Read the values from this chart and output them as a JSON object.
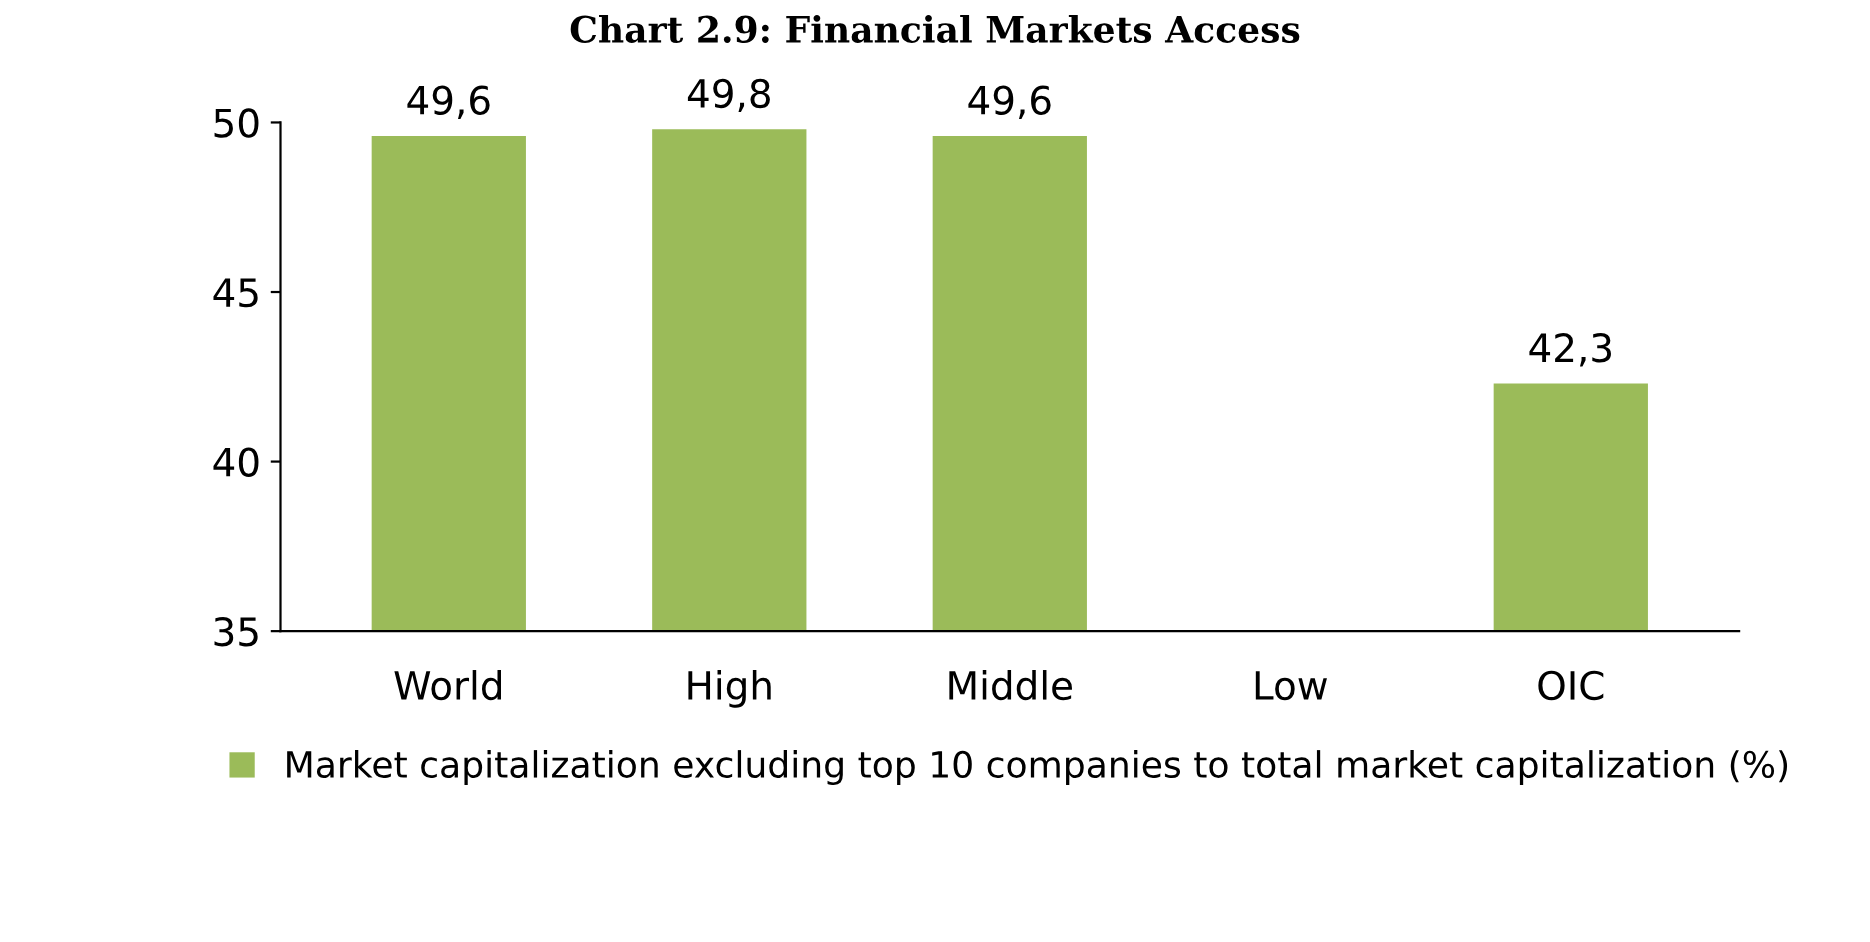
{
  "chart_data": {
    "type": "bar",
    "title": "Chart 2.9: Financial Markets Access",
    "categories": [
      "World",
      "High",
      "Middle",
      "Low",
      "OIC"
    ],
    "series": [
      {
        "name": "Market capitalization excluding top 10 companies to total market capitalization (%)",
        "color": "#9bbb59",
        "values": [
          49.6,
          49.8,
          49.6,
          null,
          42.3
        ],
        "value_labels": [
          "49,6",
          "49,8",
          "49,6",
          null,
          "42,3"
        ]
      }
    ],
    "ylim": [
      35,
      50
    ],
    "yticks": [
      35,
      40,
      45,
      50
    ],
    "grid": false,
    "legend": "bottom"
  }
}
